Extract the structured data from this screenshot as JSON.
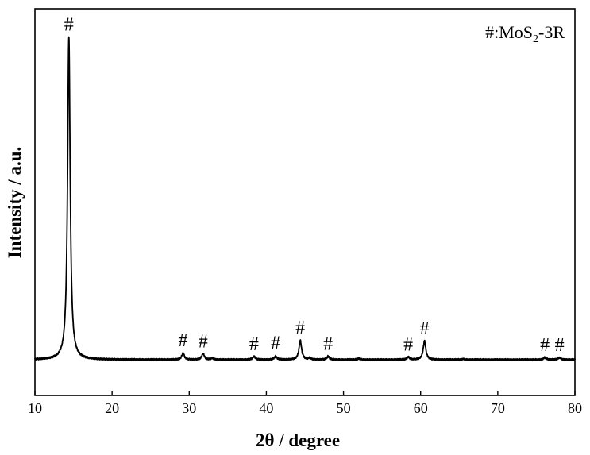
{
  "chart_data": {
    "type": "line",
    "xlabel": "2θ / degree",
    "ylabel": "Intensity / a.u.",
    "xlim": [
      10,
      80
    ],
    "ylim": [
      0,
      1.08
    ],
    "x_ticks": [
      10,
      20,
      30,
      40,
      50,
      60,
      70,
      80
    ],
    "grid": false,
    "legend": {
      "position": "top-right",
      "symbol": "#",
      "separator": ":",
      "text_main": "MoS",
      "text_sub": "2",
      "text_tail": "-3R"
    },
    "peak_marker": "#",
    "baseline": 0.1,
    "peaks": [
      {
        "x": 14.4,
        "y": 1.0
      },
      {
        "x": 29.2,
        "y": 0.118
      },
      {
        "x": 31.8,
        "y": 0.117
      },
      {
        "x": 38.4,
        "y": 0.109
      },
      {
        "x": 41.2,
        "y": 0.109
      },
      {
        "x": 44.4,
        "y": 0.153
      },
      {
        "x": 48.0,
        "y": 0.109
      },
      {
        "x": 58.4,
        "y": 0.107
      },
      {
        "x": 60.5,
        "y": 0.152
      },
      {
        "x": 76.1,
        "y": 0.106
      },
      {
        "x": 78.0,
        "y": 0.106
      }
    ],
    "marked_peaks_x": [
      14.4,
      29.2,
      31.8,
      38.4,
      41.2,
      44.4,
      48.0,
      58.4,
      60.5,
      76.1,
      78.0
    ],
    "minor_peaks": [
      {
        "x": 33.0,
        "y": 0.104
      },
      {
        "x": 45.6,
        "y": 0.104
      },
      {
        "x": 52.0,
        "y": 0.103
      },
      {
        "x": 65.5,
        "y": 0.102
      }
    ]
  }
}
